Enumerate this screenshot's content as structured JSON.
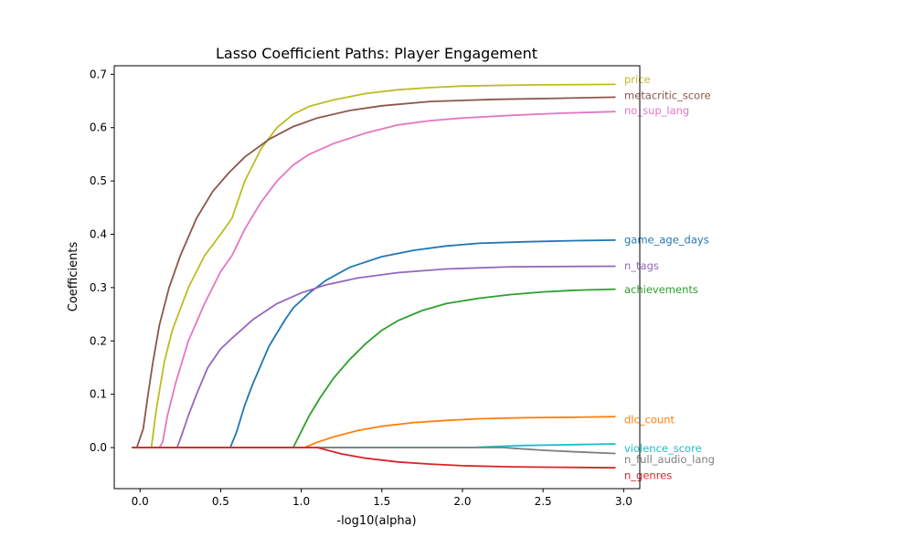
{
  "chart_data": {
    "type": "line",
    "title": "Lasso Coefficient Paths: Player Engagement",
    "xlabel": "-log10(alpha)",
    "ylabel": "Coefficients",
    "xlim": [
      -0.16,
      3.1
    ],
    "ylim": [
      -0.077,
      0.716
    ],
    "x_ticks": [
      "0.0",
      "0.5",
      "1.0",
      "1.5",
      "2.0",
      "2.5",
      "3.0"
    ],
    "y_ticks": [
      "0.0",
      "0.1",
      "0.2",
      "0.3",
      "0.4",
      "0.5",
      "0.6",
      "0.7"
    ],
    "x_tick_values": [
      0,
      0.5,
      1.0,
      1.5,
      2.0,
      2.5,
      3.0
    ],
    "y_tick_values": [
      0,
      0.1,
      0.2,
      0.3,
      0.4,
      0.5,
      0.6,
      0.7
    ],
    "grid": false,
    "legend": "none",
    "series": [
      {
        "name": "price",
        "color": "#bcbd22",
        "label_y": 0.69,
        "points": [
          [
            -0.05,
            0
          ],
          [
            0.07,
            0
          ],
          [
            0.1,
            0.07
          ],
          [
            0.15,
            0.16
          ],
          [
            0.2,
            0.22
          ],
          [
            0.3,
            0.3
          ],
          [
            0.4,
            0.36
          ],
          [
            0.5,
            0.4
          ],
          [
            0.57,
            0.43
          ],
          [
            0.65,
            0.5
          ],
          [
            0.75,
            0.56
          ],
          [
            0.85,
            0.6
          ],
          [
            0.95,
            0.625
          ],
          [
            1.05,
            0.64
          ],
          [
            1.2,
            0.652
          ],
          [
            1.4,
            0.664
          ],
          [
            1.6,
            0.671
          ],
          [
            1.8,
            0.675
          ],
          [
            2.0,
            0.678
          ],
          [
            2.4,
            0.68
          ],
          [
            2.95,
            0.681
          ]
        ]
      },
      {
        "name": "metacritic_score",
        "color": "#8c564b",
        "label_y": 0.66,
        "points": [
          [
            -0.05,
            0
          ],
          [
            -0.02,
            0
          ],
          [
            0.02,
            0.035
          ],
          [
            0.05,
            0.1
          ],
          [
            0.08,
            0.16
          ],
          [
            0.12,
            0.23
          ],
          [
            0.18,
            0.3
          ],
          [
            0.25,
            0.36
          ],
          [
            0.35,
            0.43
          ],
          [
            0.45,
            0.48
          ],
          [
            0.55,
            0.515
          ],
          [
            0.65,
            0.545
          ],
          [
            0.8,
            0.578
          ],
          [
            0.95,
            0.602
          ],
          [
            1.1,
            0.618
          ],
          [
            1.3,
            0.632
          ],
          [
            1.5,
            0.641
          ],
          [
            1.8,
            0.649
          ],
          [
            2.2,
            0.653
          ],
          [
            2.6,
            0.655
          ],
          [
            2.95,
            0.657
          ]
        ]
      },
      {
        "name": "no_sup_lang",
        "color": "#e377c2",
        "label_y": 0.632,
        "points": [
          [
            -0.05,
            0
          ],
          [
            0.12,
            0
          ],
          [
            0.14,
            0.01
          ],
          [
            0.17,
            0.06
          ],
          [
            0.22,
            0.12
          ],
          [
            0.3,
            0.2
          ],
          [
            0.4,
            0.27
          ],
          [
            0.5,
            0.33
          ],
          [
            0.57,
            0.36
          ],
          [
            0.65,
            0.41
          ],
          [
            0.75,
            0.46
          ],
          [
            0.85,
            0.5
          ],
          [
            0.95,
            0.53
          ],
          [
            1.05,
            0.55
          ],
          [
            1.2,
            0.57
          ],
          [
            1.4,
            0.59
          ],
          [
            1.6,
            0.605
          ],
          [
            1.8,
            0.613
          ],
          [
            2.0,
            0.618
          ],
          [
            2.3,
            0.623
          ],
          [
            2.6,
            0.627
          ],
          [
            2.95,
            0.63
          ]
        ]
      },
      {
        "name": "game_age_days",
        "color": "#1f77b4",
        "label_y": 0.39,
        "points": [
          [
            -0.05,
            0
          ],
          [
            0.56,
            0
          ],
          [
            0.6,
            0.03
          ],
          [
            0.65,
            0.08
          ],
          [
            0.7,
            0.12
          ],
          [
            0.8,
            0.19
          ],
          [
            0.9,
            0.24
          ],
          [
            0.95,
            0.262
          ],
          [
            1.05,
            0.29
          ],
          [
            1.15,
            0.313
          ],
          [
            1.3,
            0.338
          ],
          [
            1.5,
            0.358
          ],
          [
            1.7,
            0.37
          ],
          [
            1.9,
            0.378
          ],
          [
            2.1,
            0.383
          ],
          [
            2.4,
            0.386
          ],
          [
            2.7,
            0.388
          ],
          [
            2.95,
            0.389
          ]
        ]
      },
      {
        "name": "n_tags",
        "color": "#9467bd",
        "label_y": 0.341,
        "points": [
          [
            -0.05,
            0
          ],
          [
            0.23,
            0
          ],
          [
            0.26,
            0.025
          ],
          [
            0.3,
            0.06
          ],
          [
            0.35,
            0.1
          ],
          [
            0.42,
            0.15
          ],
          [
            0.5,
            0.185
          ],
          [
            0.57,
            0.205
          ],
          [
            0.7,
            0.24
          ],
          [
            0.85,
            0.27
          ],
          [
            1.0,
            0.29
          ],
          [
            1.15,
            0.305
          ],
          [
            1.35,
            0.318
          ],
          [
            1.6,
            0.328
          ],
          [
            1.9,
            0.335
          ],
          [
            2.3,
            0.339
          ],
          [
            2.95,
            0.34
          ]
        ]
      },
      {
        "name": "achievements",
        "color": "#2ca02c",
        "label_y": 0.296,
        "points": [
          [
            -0.05,
            0
          ],
          [
            0.95,
            0
          ],
          [
            1.0,
            0.03
          ],
          [
            1.05,
            0.06
          ],
          [
            1.12,
            0.095
          ],
          [
            1.2,
            0.13
          ],
          [
            1.3,
            0.165
          ],
          [
            1.4,
            0.195
          ],
          [
            1.5,
            0.22
          ],
          [
            1.6,
            0.238
          ],
          [
            1.75,
            0.257
          ],
          [
            1.9,
            0.27
          ],
          [
            2.1,
            0.28
          ],
          [
            2.3,
            0.287
          ],
          [
            2.5,
            0.292
          ],
          [
            2.7,
            0.295
          ],
          [
            2.95,
            0.297
          ]
        ]
      },
      {
        "name": "dlc_count",
        "color": "#ff7f0e",
        "label_y": 0.052,
        "points": [
          [
            -0.05,
            0
          ],
          [
            1.02,
            0
          ],
          [
            1.1,
            0.01
          ],
          [
            1.2,
            0.02
          ],
          [
            1.35,
            0.032
          ],
          [
            1.5,
            0.04
          ],
          [
            1.7,
            0.047
          ],
          [
            1.9,
            0.051
          ],
          [
            2.1,
            0.054
          ],
          [
            2.4,
            0.056
          ],
          [
            2.7,
            0.057
          ],
          [
            2.95,
            0.058
          ]
        ]
      },
      {
        "name": "violence_score",
        "color": "#17becf",
        "label_y": -0.002,
        "points": [
          [
            -0.05,
            0
          ],
          [
            2.05,
            0
          ],
          [
            2.2,
            0.002
          ],
          [
            2.4,
            0.004
          ],
          [
            2.6,
            0.005
          ],
          [
            2.8,
            0.006
          ],
          [
            2.95,
            0.007
          ]
        ]
      },
      {
        "name": "n_full_audio_lang",
        "color": "#7f7f7f",
        "label_y": -0.022,
        "points": [
          [
            -0.05,
            0
          ],
          [
            2.25,
            0
          ],
          [
            2.35,
            -0.002
          ],
          [
            2.5,
            -0.005
          ],
          [
            2.7,
            -0.008
          ],
          [
            2.95,
            -0.011
          ]
        ]
      },
      {
        "name": "n_genres",
        "color": "#d62728",
        "label_y": -0.052,
        "points": [
          [
            -0.05,
            0
          ],
          [
            1.1,
            0
          ],
          [
            1.15,
            -0.004
          ],
          [
            1.25,
            -0.012
          ],
          [
            1.4,
            -0.02
          ],
          [
            1.6,
            -0.027
          ],
          [
            1.8,
            -0.031
          ],
          [
            2.0,
            -0.034
          ],
          [
            2.3,
            -0.036
          ],
          [
            2.6,
            -0.037
          ],
          [
            2.95,
            -0.038
          ]
        ]
      }
    ]
  }
}
